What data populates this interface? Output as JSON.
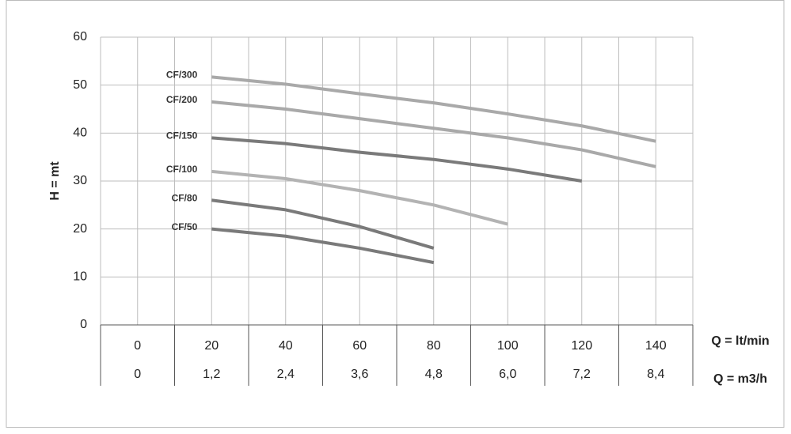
{
  "chart_data": {
    "type": "line",
    "y_label": "H = mt",
    "x_label": "Q = lt/min",
    "x2_label": "Q = m3/h",
    "x": [
      20,
      40,
      60,
      80,
      100,
      120,
      140
    ],
    "xlim": [
      -10,
      150
    ],
    "xticks": [
      0,
      20,
      40,
      60,
      80,
      100,
      120,
      140
    ],
    "x2_labels": [
      "0",
      "1,2",
      "2,4",
      "3,6",
      "4,8",
      "6,0",
      "7,2",
      "8,4"
    ],
    "ylim": [
      0,
      60
    ],
    "yticks": [
      0,
      10,
      20,
      30,
      40,
      50,
      60
    ],
    "grid": true,
    "series": [
      {
        "name": "CF/300",
        "color": "#a9a9a9",
        "values": [
          51.7,
          50.2,
          48.2,
          46.3,
          44,
          41.5,
          38.3
        ]
      },
      {
        "name": "CF/200",
        "color": "#a9a9a9",
        "values": [
          46.5,
          45,
          43,
          41,
          39,
          36.5,
          33
        ]
      },
      {
        "name": "CF/150",
        "color": "#7a7a7a",
        "values": [
          39,
          37.8,
          36,
          34.5,
          32.5,
          30,
          null
        ]
      },
      {
        "name": "CF/100",
        "color": "#b3b3b3",
        "values": [
          32,
          30.5,
          28,
          25,
          21,
          null,
          null
        ]
      },
      {
        "name": "CF/80",
        "color": "#7a7a7a",
        "values": [
          26,
          24,
          20.5,
          16,
          null,
          null,
          null
        ]
      },
      {
        "name": "CF/50",
        "color": "#7a7a7a",
        "values": [
          20,
          18.5,
          16,
          13,
          null,
          null,
          null
        ]
      }
    ]
  }
}
